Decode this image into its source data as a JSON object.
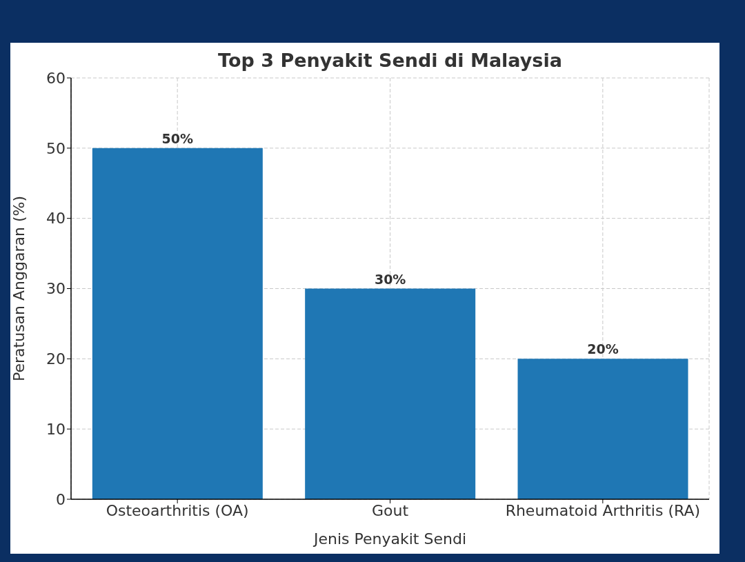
{
  "chart_data": {
    "type": "bar",
    "title": "Top 3 Penyakit Sendi di Malaysia",
    "xlabel": "Jenis Penyakit Sendi",
    "ylabel": "Peratusan Anggaran (%)",
    "categories": [
      "Osteoarthritis (OA)",
      "Gout",
      "Rheumatoid Arthritis (RA)"
    ],
    "values": [
      50,
      30,
      20
    ],
    "value_labels": [
      "50%",
      "30%",
      "20%"
    ],
    "color": "#1f77b4",
    "ylim": [
      0,
      60
    ],
    "yticks": [
      0,
      10,
      20,
      30,
      40,
      50,
      60
    ],
    "grid": true
  }
}
